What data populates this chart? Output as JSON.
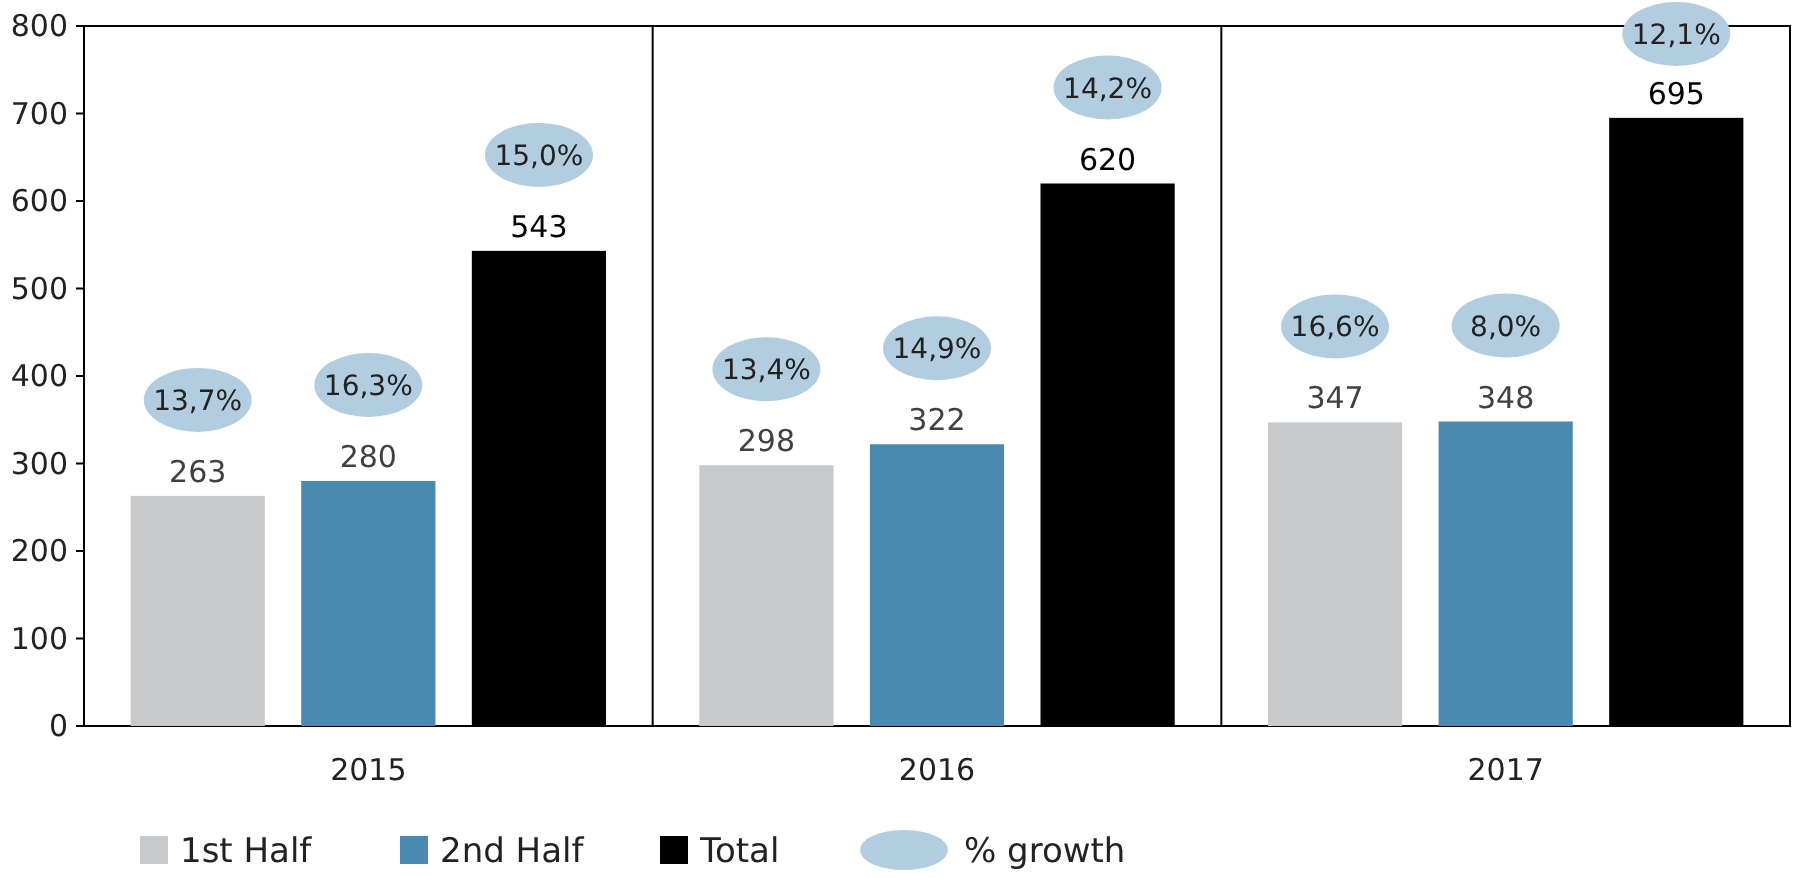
{
  "chart_data": {
    "type": "bar",
    "categories": [
      "2015",
      "2016",
      "2017"
    ],
    "series": [
      {
        "name": "1st Half",
        "color": "#c8c9cb",
        "values": [
          263,
          298,
          347
        ]
      },
      {
        "name": "2nd Half",
        "color": "#4a89b0",
        "values": [
          280,
          322,
          348
        ]
      },
      {
        "name": "Total",
        "color": "#000000",
        "values": [
          543,
          620,
          695
        ]
      }
    ],
    "annotations": [
      "13,7%",
      "16,3%",
      "15,0%",
      "13,4%",
      "14,9%",
      "14,2%",
      "16,6%",
      "8,0%",
      "12,1%",
      "% growth"
    ],
    "data_labels": true,
    "ylim": [
      0,
      800
    ],
    "yticks": [
      0,
      100,
      200,
      300,
      400,
      500,
      600,
      700,
      800
    ],
    "grid": false,
    "legend": "bottom"
  }
}
